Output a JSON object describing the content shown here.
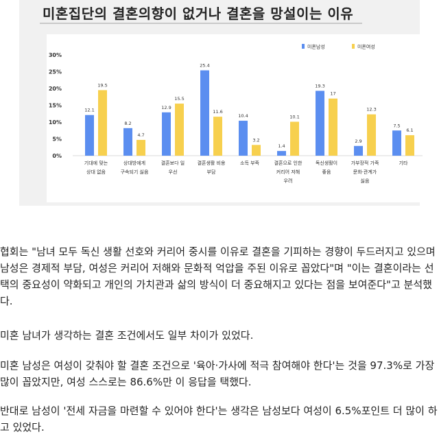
{
  "chart_data": {
    "type": "bar",
    "title": "미혼집단의 결혼의향이 없거나 결혼을 망설이는 이유",
    "categories": [
      [
        "기대에 맞는",
        "상대 없음"
      ],
      [
        "상대방에게",
        "구속되기 싫음"
      ],
      [
        "결혼보다 일",
        "우선"
      ],
      [
        "결혼생활 비용",
        "부담"
      ],
      [
        "소득 부족"
      ],
      [
        "결혼으로 인한",
        "커리어 저해",
        "우려"
      ],
      [
        "독신생활이",
        "좋음"
      ],
      [
        "가부장적 가족",
        "문화·관계가",
        "싫음"
      ],
      [
        "기타"
      ]
    ],
    "series": [
      {
        "name": "미혼남성",
        "color": "#5b8ef0",
        "values": [
          12.1,
          8.2,
          12.9,
          25.4,
          10.4,
          1.4,
          19.3,
          2.9,
          7.5
        ]
      },
      {
        "name": "미혼여성",
        "color": "#f7d04e",
        "values": [
          19.5,
          4.7,
          15.5,
          11.6,
          3.2,
          10.1,
          17,
          12.3,
          6.1
        ]
      }
    ],
    "value_labels": [
      [
        "12.1",
        "8.2",
        "12.9",
        "25.4",
        "10.4",
        "1.4",
        "19.3",
        "2.9",
        "7.5"
      ],
      [
        "19.5",
        "4.7",
        "15.5",
        "11.6",
        "3.2",
        "10.1",
        "17",
        "12.3",
        "6.1"
      ]
    ],
    "yticks": [
      "0%",
      "5%",
      "10%",
      "15%",
      "20%",
      "25%",
      "30%"
    ],
    "ylim": [
      0,
      30
    ],
    "legend_position": "top-right",
    "grid": false
  },
  "article": {
    "p1": "협회는 \"남녀 모두 독신 생활 선호와 커리어 중시를 이유로 결혼을 기피하는 경향이 두드러지고 있으며 남성은 경제적 부담, 여성은 커리어 저해와 문화적 억압을 주된 이유로 꼽았다\"며 \"이는 결혼이라는 선택의 중요성이 약화되고 개인의 가치관과 삶의 방식이 더 중요해지고 있다는 점을 보여준다\"고 분석했다.",
    "p2": "미혼 남녀가 생각하는 결혼 조건에서도 일부 차이가 있었다.",
    "p3": "미혼 남성은 여성이 갖춰야 할 결혼 조건으로 '육아·가사에 적극 참여해야 한다'는 것을 97.3%로 가장 많이 꼽았지만, 여성 스스로는 86.6%만 이 응답을 택했다.",
    "p4": "반대로 남성이 '전세 자금을 마련할 수 있어야 한다'는 생각은 남성보다 여성이 6.5%포인트 더 많이 하고 있었다."
  }
}
